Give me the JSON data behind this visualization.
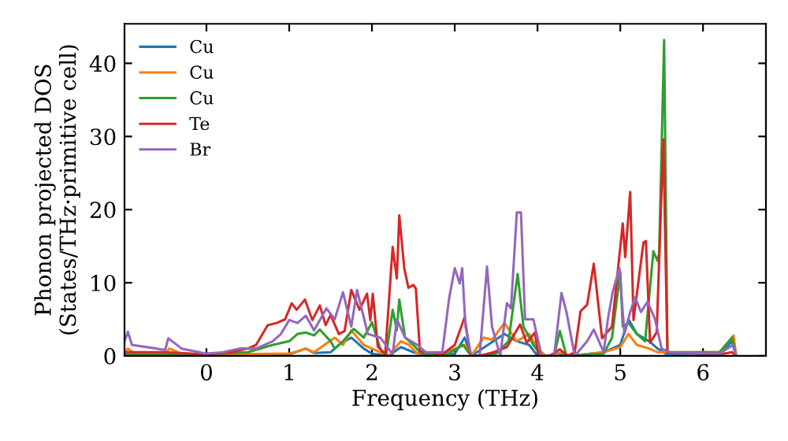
{
  "chart_data": {
    "type": "line",
    "xlabel": "Frequency (THz)",
    "ylabel": "Phonon projected DOS\n(States/THz·primitive cell)",
    "xlim": [
      -0.99,
      6.76
    ],
    "ylim": [
      0,
      45.4
    ],
    "xticks": [
      0,
      1,
      2,
      3,
      4,
      5,
      6
    ],
    "yticks": [
      0,
      10,
      20,
      30,
      40
    ],
    "legend": "top left",
    "grid": false,
    "line_style": "solid",
    "marker": "none",
    "series": [
      {
        "name": "Cu",
        "color": "#1f77b4",
        "x": [
          0,
          1.0,
          1.2,
          1.3,
          1.5,
          1.6,
          1.75,
          1.9,
          2.0,
          2.2,
          2.35,
          2.5,
          2.6,
          3.0,
          3.12,
          3.2,
          3.4,
          3.6,
          3.75,
          3.9,
          4.0,
          4.2,
          4.3,
          4.4,
          4.8,
          5.0,
          5.1,
          5.2,
          5.35,
          5.45,
          5.55,
          6.2,
          6.35,
          6.4
        ],
        "values": [
          0.1,
          0.2,
          1.0,
          0.4,
          0.5,
          1.5,
          2.5,
          1.0,
          0.3,
          0,
          1.2,
          0.5,
          0.2,
          0.3,
          2.5,
          0,
          1.5,
          3.0,
          2.0,
          1.5,
          0,
          0,
          0.3,
          0,
          0.5,
          1.5,
          5.0,
          3.0,
          2.0,
          1.0,
          0.3,
          0.3,
          2.0,
          0
        ]
      },
      {
        "name": "Cu",
        "color": "#ff7f0e",
        "x": [
          -0.99,
          -0.95,
          -0.85,
          -0.5,
          -0.45,
          -0.3,
          0,
          1.0,
          1.2,
          1.3,
          1.55,
          1.65,
          1.75,
          1.9,
          2.1,
          2.2,
          2.35,
          2.45,
          2.55,
          2.9,
          3.12,
          3.2,
          3.35,
          3.45,
          3.6,
          3.75,
          3.9,
          4.0,
          4.1,
          4.3,
          4.4,
          4.8,
          5.0,
          5.1,
          5.2,
          5.35,
          5.45,
          5.6,
          6.2,
          6.37,
          6.4
        ],
        "values": [
          0.5,
          1.0,
          0.2,
          0.2,
          1.0,
          0.3,
          0.2,
          0.3,
          1.0,
          0.5,
          2.5,
          1.5,
          3.5,
          1.5,
          0.5,
          0,
          2.0,
          1.5,
          0.3,
          0.5,
          1.5,
          0,
          2.5,
          2.2,
          4.5,
          2.0,
          3.0,
          1.0,
          0,
          0.5,
          0,
          0.5,
          1.2,
          3.0,
          1.5,
          1.0,
          0.5,
          0.5,
          0.5,
          2.8,
          0
        ]
      },
      {
        "name": "Cu",
        "color": "#2ca02c",
        "x": [
          -0.99,
          -0.5,
          0,
          0.5,
          0.8,
          1.0,
          1.1,
          1.2,
          1.3,
          1.37,
          1.5,
          1.55,
          1.65,
          1.78,
          1.9,
          2.0,
          2.1,
          2.17,
          2.25,
          2.3,
          2.33,
          2.4,
          2.5,
          2.6,
          2.9,
          3.1,
          3.2,
          3.5,
          3.65,
          3.76,
          3.83,
          3.95,
          4.05,
          4.2,
          4.27,
          4.35,
          4.8,
          4.9,
          5.0,
          5.03,
          5.1,
          5.2,
          5.3,
          5.4,
          5.45,
          5.47,
          5.53,
          5.57,
          6.2,
          6.35,
          6.4
        ],
        "values": [
          0.2,
          0.2,
          0.2,
          0.5,
          1.5,
          2.0,
          3.0,
          3.2,
          2.8,
          3.6,
          2.0,
          1.0,
          2.0,
          3.7,
          2.5,
          4.6,
          1.0,
          0,
          6.3,
          3.5,
          7.7,
          2.5,
          1.5,
          0.3,
          0.2,
          1.5,
          0,
          0.3,
          2.0,
          11.2,
          4.0,
          1.5,
          0,
          0,
          3.4,
          0,
          0.3,
          2.5,
          11.5,
          4.0,
          4.5,
          3.0,
          2.0,
          14.3,
          13.0,
          14.0,
          43.2,
          0.5,
          0.5,
          2.5,
          0
        ]
      },
      {
        "name": "Te",
        "color": "#d62728",
        "x": [
          -0.99,
          -0.5,
          0,
          0.3,
          0.5,
          0.6,
          0.74,
          0.85,
          0.95,
          1.03,
          1.09,
          1.19,
          1.28,
          1.37,
          1.44,
          1.5,
          1.6,
          1.67,
          1.75,
          1.85,
          1.94,
          1.98,
          2.01,
          2.07,
          2.16,
          2.25,
          2.3,
          2.33,
          2.39,
          2.44,
          2.5,
          2.53,
          2.58,
          2.85,
          3.0,
          3.12,
          3.19,
          3.3,
          3.47,
          3.63,
          3.79,
          3.87,
          3.97,
          4.01,
          4.15,
          4.27,
          4.36,
          4.45,
          4.52,
          4.6,
          4.68,
          4.78,
          4.9,
          5.03,
          5.06,
          5.12,
          5.16,
          5.28,
          5.31,
          5.36,
          5.44,
          5.52,
          5.57,
          6.2,
          6.35,
          6.4
        ],
        "values": [
          0.5,
          0.5,
          0.2,
          0.5,
          1.0,
          1.5,
          4.2,
          4.5,
          5.0,
          7.2,
          6.3,
          7.7,
          4.9,
          6.9,
          4.2,
          5.6,
          3.0,
          3.4,
          9.0,
          6.3,
          8.5,
          4.9,
          8.5,
          1.3,
          0.2,
          14.9,
          10.6,
          19.2,
          12.0,
          9.3,
          9.7,
          9.2,
          0.6,
          0.2,
          1.5,
          5.3,
          0,
          0,
          0.5,
          1.2,
          4.3,
          1.8,
          3.2,
          0,
          0,
          0.9,
          0,
          0.5,
          6.1,
          7.0,
          12.6,
          2.4,
          4.0,
          18.1,
          13.5,
          22.4,
          4.9,
          15.5,
          15.7,
          1.8,
          3.2,
          29.6,
          0.5,
          0.2,
          0.5,
          0
        ]
      },
      {
        "name": "Br",
        "color": "#9467bd",
        "x": [
          -0.99,
          -0.95,
          -0.9,
          -0.6,
          -0.5,
          -0.46,
          -0.3,
          0,
          0.2,
          0.4,
          0.6,
          0.8,
          0.9,
          1.0,
          1.1,
          1.2,
          1.3,
          1.45,
          1.55,
          1.65,
          1.75,
          1.82,
          1.95,
          2.1,
          2.2,
          2.25,
          2.3,
          2.4,
          2.55,
          2.65,
          2.85,
          2.93,
          3.0,
          3.06,
          3.09,
          3.13,
          3.2,
          3.3,
          3.39,
          3.45,
          3.55,
          3.63,
          3.68,
          3.75,
          3.8,
          3.85,
          3.95,
          4.05,
          4.2,
          4.29,
          4.35,
          4.45,
          4.6,
          4.68,
          4.8,
          4.85,
          4.91,
          4.99,
          5.05,
          5.12,
          5.18,
          5.25,
          5.33,
          5.42,
          5.5,
          5.6,
          6.2,
          6.36,
          6.4
        ],
        "values": [
          2.0,
          3.3,
          1.5,
          1.0,
          0.8,
          2.4,
          1.0,
          0.3,
          0.5,
          1.0,
          1.0,
          2.0,
          3.0,
          4.9,
          4.5,
          5.5,
          3.5,
          6.5,
          5.0,
          8.7,
          4.0,
          9.0,
          3.0,
          2.5,
          1.0,
          0.2,
          5.0,
          2.5,
          1.5,
          0.5,
          0.5,
          7.7,
          12.0,
          9.9,
          12.0,
          4.0,
          0,
          0,
          12.2,
          4.0,
          0,
          7.2,
          6.5,
          19.6,
          19.6,
          5.0,
          5.0,
          0,
          0,
          8.6,
          6.0,
          0,
          2.0,
          3.6,
          0.5,
          5.0,
          8.8,
          12.0,
          3.0,
          6.0,
          8.0,
          6.0,
          7.4,
          5.0,
          1.0,
          0.5,
          0.3,
          1.5,
          0
        ]
      }
    ]
  }
}
